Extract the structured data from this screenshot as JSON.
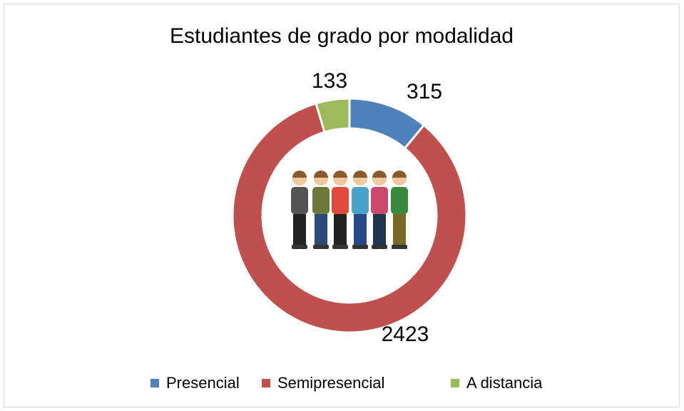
{
  "chart_data": {
    "type": "donut",
    "title": "Estudiantes de grado por modalidad",
    "categories": [
      "Presencial",
      "Semipresencial",
      "A distancia"
    ],
    "values": [
      315,
      2423,
      133
    ],
    "colors": [
      "#4f81bd",
      "#c0504d",
      "#9bbb59"
    ],
    "legend": "bottom"
  }
}
